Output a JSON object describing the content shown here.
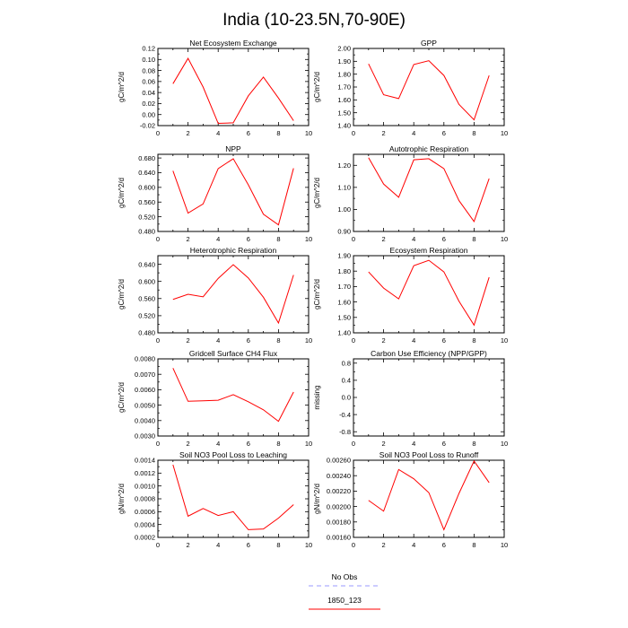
{
  "figure": {
    "title": "India (10-23.5N,70-90E)",
    "legend": [
      {
        "label": "No Obs",
        "color": "#9999ff",
        "dash": true
      },
      {
        "label": "1850_123",
        "color": "#ff0000",
        "dash": false
      }
    ]
  },
  "chart_data": [
    {
      "type": "line",
      "title": "Net Ecosystem Exchange",
      "ylabel": "gC/m^2/d",
      "xlim": [
        0,
        10
      ],
      "ylim": [
        -0.02,
        0.12
      ],
      "xticks": [
        "0",
        "2",
        "4",
        "6",
        "8",
        "10"
      ],
      "yticks": [
        "-0.02",
        "0.00",
        "0.02",
        "0.04",
        "0.06",
        "0.08",
        "0.10",
        "0.12"
      ],
      "series": [
        {
          "color": "#ff0000",
          "x": [
            1,
            2,
            3,
            4,
            5,
            6,
            7,
            8,
            9
          ],
          "y": [
            0.056,
            0.102,
            0.05,
            -0.016,
            -0.015,
            0.034,
            0.068,
            0.03,
            -0.011
          ]
        }
      ]
    },
    {
      "type": "line",
      "title": "GPP",
      "ylabel": "gC/m^2/d",
      "xlim": [
        0,
        10
      ],
      "ylim": [
        1.4,
        2.0
      ],
      "xticks": [
        "0",
        "2",
        "4",
        "6",
        "8",
        "10"
      ],
      "yticks": [
        "1.40",
        "1.50",
        "1.60",
        "1.70",
        "1.80",
        "1.90",
        "2.00"
      ],
      "series": [
        {
          "color": "#ff0000",
          "x": [
            1,
            2,
            3,
            4,
            5,
            6,
            7,
            8,
            9
          ],
          "y": [
            1.88,
            1.64,
            1.61,
            1.875,
            1.905,
            1.79,
            1.565,
            1.445,
            1.79
          ]
        }
      ]
    },
    {
      "type": "line",
      "title": "NPP",
      "ylabel": "gC/m^2/d",
      "xlim": [
        0,
        10
      ],
      "ylim": [
        0.48,
        0.69
      ],
      "xticks": [
        "0",
        "2",
        "4",
        "6",
        "8",
        "10"
      ],
      "yticks": [
        "0.480",
        "0.520",
        "0.560",
        "0.600",
        "0.640",
        "0.680"
      ],
      "series": [
        {
          "color": "#ff0000",
          "x": [
            1,
            2,
            3,
            4,
            5,
            6,
            7,
            8,
            9
          ],
          "y": [
            0.645,
            0.53,
            0.555,
            0.651,
            0.678,
            0.607,
            0.527,
            0.498,
            0.652
          ]
        }
      ]
    },
    {
      "type": "line",
      "title": "Autotrophic Respiration",
      "ylabel": "gC/m^2/d",
      "xlim": [
        0,
        10
      ],
      "ylim": [
        0.9,
        1.25
      ],
      "xticks": [
        "0",
        "2",
        "4",
        "6",
        "8",
        "10"
      ],
      "yticks": [
        "0.90",
        "1.00",
        "1.10",
        "1.20"
      ],
      "series": [
        {
          "color": "#ff0000",
          "x": [
            1,
            2,
            3,
            4,
            5,
            6,
            7,
            8,
            9
          ],
          "y": [
            1.235,
            1.115,
            1.055,
            1.225,
            1.23,
            1.185,
            1.04,
            0.945,
            1.14
          ]
        }
      ]
    },
    {
      "type": "line",
      "title": "Heterotrophic Respiration",
      "ylabel": "gC/m^2/d",
      "xlim": [
        0,
        10
      ],
      "ylim": [
        0.48,
        0.66
      ],
      "xticks": [
        "0",
        "2",
        "4",
        "6",
        "8",
        "10"
      ],
      "yticks": [
        "0.480",
        "0.520",
        "0.560",
        "0.600",
        "0.640"
      ],
      "series": [
        {
          "color": "#ff0000",
          "x": [
            1,
            2,
            3,
            4,
            5,
            6,
            7,
            8,
            9
          ],
          "y": [
            0.558,
            0.57,
            0.564,
            0.607,
            0.639,
            0.608,
            0.563,
            0.503,
            0.615
          ]
        }
      ]
    },
    {
      "type": "line",
      "title": "Ecosystem Respiration",
      "ylabel": "gC/m^2/d",
      "xlim": [
        0,
        10
      ],
      "ylim": [
        1.4,
        1.9
      ],
      "xticks": [
        "0",
        "2",
        "4",
        "6",
        "8",
        "10"
      ],
      "yticks": [
        "1.40",
        "1.50",
        "1.60",
        "1.70",
        "1.80",
        "1.90"
      ],
      "series": [
        {
          "color": "#ff0000",
          "x": [
            1,
            2,
            3,
            4,
            5,
            6,
            7,
            8,
            9
          ],
          "y": [
            1.795,
            1.69,
            1.62,
            1.835,
            1.87,
            1.795,
            1.605,
            1.45,
            1.76
          ]
        }
      ]
    },
    {
      "type": "line",
      "title": "Gridcell Surface CH4 Flux",
      "ylabel": "gC/m^2/d",
      "xlim": [
        0,
        10
      ],
      "ylim": [
        0.003,
        0.008
      ],
      "xticks": [
        "0",
        "2",
        "4",
        "6",
        "8",
        "10"
      ],
      "yticks": [
        "0.0030",
        "0.0040",
        "0.0050",
        "0.0060",
        "0.0070",
        "0.0080"
      ],
      "series": [
        {
          "color": "#ff0000",
          "x": [
            1,
            2,
            3,
            4,
            5,
            6,
            7,
            8,
            9
          ],
          "y": [
            0.0074,
            0.00525,
            0.00528,
            0.00532,
            0.00568,
            0.00522,
            0.0047,
            0.00395,
            0.00585
          ]
        }
      ]
    },
    {
      "type": "line",
      "title": "Carbon Use Efficiency (NPP/GPP)",
      "ylabel": "missing",
      "xlim": [
        0,
        10
      ],
      "ylim": [
        -0.9,
        0.9
      ],
      "xticks": [
        "0",
        "2",
        "4",
        "6",
        "8",
        "10"
      ],
      "yticks": [
        "-0.8",
        "-0.4",
        "0.0",
        "0.4",
        "0.8"
      ],
      "series": []
    },
    {
      "type": "line",
      "title": "Soil NO3 Pool Loss to Leaching",
      "ylabel": "gN/m^2/d",
      "xlim": [
        0,
        10
      ],
      "ylim": [
        0.0002,
        0.0014
      ],
      "xticks": [
        "0",
        "2",
        "4",
        "6",
        "8",
        "10"
      ],
      "yticks": [
        "0.0002",
        "0.0004",
        "0.0006",
        "0.0008",
        "0.0010",
        "0.0012",
        "0.0014"
      ],
      "series": [
        {
          "color": "#ff0000",
          "x": [
            1,
            2,
            3,
            4,
            5,
            6,
            7,
            8,
            9
          ],
          "y": [
            0.00133,
            0.00053,
            0.00065,
            0.00054,
            0.0006,
            0.00032,
            0.00033,
            0.0005,
            0.00071
          ]
        }
      ]
    },
    {
      "type": "line",
      "title": "Soil NO3 Pool Loss to Runoff",
      "ylabel": "gN/m^2/d",
      "xlim": [
        0,
        10
      ],
      "ylim": [
        0.0016,
        0.0026
      ],
      "xticks": [
        "0",
        "2",
        "4",
        "6",
        "8",
        "10"
      ],
      "yticks": [
        "0.00160",
        "0.00180",
        "0.00200",
        "0.00220",
        "0.00240",
        "0.00260"
      ],
      "series": [
        {
          "color": "#ff0000",
          "x": [
            1,
            2,
            3,
            4,
            5,
            6,
            7,
            8,
            9
          ],
          "y": [
            0.00208,
            0.00194,
            0.00248,
            0.00236,
            0.00218,
            0.0017,
            0.00217,
            0.00259,
            0.00231
          ]
        }
      ]
    }
  ]
}
